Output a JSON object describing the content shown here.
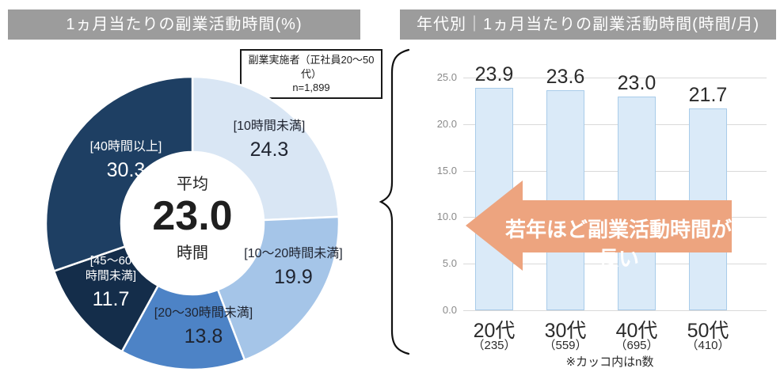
{
  "colors": {
    "header_bg": "#9c9c9c",
    "header_text": "#ffffff",
    "donut_palette": [
      "#d9e6f4",
      "#a5c5e8",
      "#4d83c6",
      "#142d4a",
      "#1e3f63"
    ],
    "bar_fill": "#daeaf8",
    "bar_border": "#a9cce9",
    "arrow_orange": "#eda47f",
    "grid_gray": "#d9d9d9",
    "tick_gray": "#8a8a8a"
  },
  "left_panel": {
    "title": "1ヵ月当たりの副業活動時間(%)",
    "note_line1": "副業実施者（正社員20～50代）",
    "note_line2": "n=1,899",
    "center_top": "平均",
    "center_value": "23.0",
    "center_bottom": "時間"
  },
  "right_panel": {
    "title": "年代別｜1ヵ月当たりの副業活動時間(時間/月)",
    "arrow_text": "若年ほど副業活動時間が長い",
    "footnote": "※カッコ内はn数"
  },
  "chart_data": [
    {
      "type": "pie",
      "donut": true,
      "title": "1ヵ月当たりの副業活動時間(%)",
      "labels": [
        "[10時間未満]",
        "[10～20時間未満]",
        "[20～30時間未満]",
        "[45～60時間未満]",
        "[40時間以上]"
      ],
      "label_line1_seg3": "[45～60",
      "label_line2_seg3": "時間未満]",
      "values": [
        24.3,
        19.9,
        13.8,
        11.7,
        30.3
      ],
      "unit": "%",
      "start_angle_deg": 0,
      "direction": "clockwise",
      "center_annotation": "平均 23.0 時間",
      "sample_note": "副業実施者（正社員20～50代） n=1,899"
    },
    {
      "type": "bar",
      "title": "年代別｜1ヵ月当たりの副業活動時間(時間/月)",
      "categories": [
        "20代",
        "30代",
        "40代",
        "50代"
      ],
      "n_labels": [
        "（235）",
        "（559）",
        "（695）",
        "（410）"
      ],
      "values": [
        23.9,
        23.6,
        23.0,
        21.7
      ],
      "value_labels": [
        "23.9",
        "23.6",
        "23.0",
        "21.7"
      ],
      "ylim": [
        0,
        25
      ],
      "yticks": [
        "0.0",
        "5.0",
        "10.0",
        "15.0",
        "20.0",
        "25.0"
      ],
      "grid": true,
      "annotation": "若年ほど副業活動時間が長い",
      "footnote": "※カッコ内はn数"
    }
  ]
}
